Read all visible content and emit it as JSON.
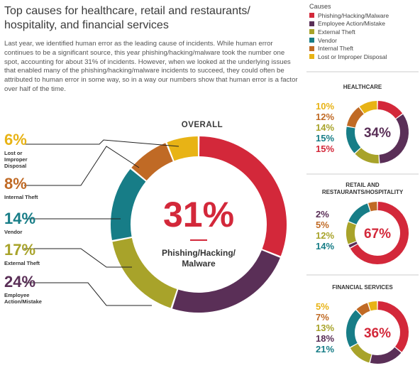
{
  "title": "Top causes for healthcare, retail and restaurants/ hospitality, and financial services",
  "intro": "Last year, we identified human error as the leading cause of incidents. While human error continues to be a significant source, this year phishing/hacking/malware took the number one spot, accounting for about 31% of incidents. However, when we looked at the underlying issues that enabled many of the phishing/hacking/malware incidents to succeed, they could often be attributed to human error in some way, so in a way our numbers show that human error is a factor over half of the time.",
  "colors": {
    "phishing": "#d3283a",
    "employee": "#5a2f57",
    "external": "#a8a32a",
    "vendor": "#177d87",
    "internal": "#c06a25",
    "disposal": "#e8b315"
  },
  "legend": {
    "title": "Causes",
    "items": [
      {
        "label": "Phishing/Hacking/Malware",
        "color": "#d3283a"
      },
      {
        "label": "Employee Action/Mistake",
        "color": "#5a2f57"
      },
      {
        "label": "External Theft",
        "color": "#a8a32a"
      },
      {
        "label": "Vendor",
        "color": "#177d87"
      },
      {
        "label": "Internal Theft",
        "color": "#c06a25"
      },
      {
        "label": "Lost or Improper Disposal",
        "color": "#e8b315"
      }
    ]
  },
  "overall": {
    "heading": "OVERALL",
    "center_pct": "31%",
    "center_label": "Phishing/Hacking/ Malware",
    "labels": [
      {
        "pct": "6%",
        "cause": "Lost or Improper Disposal",
        "color": "#e8b315"
      },
      {
        "pct": "8%",
        "cause": "Internal Theft",
        "color": "#c06a25"
      },
      {
        "pct": "14%",
        "cause": "Vendor",
        "color": "#177d87"
      },
      {
        "pct": "17%",
        "cause": "External Theft",
        "color": "#a8a32a"
      },
      {
        "pct": "24%",
        "cause": "Employee Action/Mistake",
        "color": "#5a2f57"
      }
    ]
  },
  "sectors": [
    {
      "title": "HEALTHCARE",
      "center": "34%",
      "values": [
        {
          "text": "10%",
          "color": "#e8b315"
        },
        {
          "text": "12%",
          "color": "#c06a25"
        },
        {
          "text": "14%",
          "color": "#a8a32a"
        },
        {
          "text": "15%",
          "color": "#177d87"
        },
        {
          "text": "15%",
          "color": "#d3283a"
        }
      ]
    },
    {
      "title": "RETAIL AND RESTAURANTS/HOSPITALITY",
      "center": "67%",
      "values": [
        {
          "text": "2%",
          "color": "#5a2f57"
        },
        {
          "text": "5%",
          "color": "#c06a25"
        },
        {
          "text": "12%",
          "color": "#a8a32a"
        },
        {
          "text": "14%",
          "color": "#177d87"
        }
      ]
    },
    {
      "title": "FINANCIAL SERVICES",
      "center": "36%",
      "values": [
        {
          "text": "5%",
          "color": "#e8b315"
        },
        {
          "text": "7%",
          "color": "#c06a25"
        },
        {
          "text": "13%",
          "color": "#a8a32a"
        },
        {
          "text": "18%",
          "color": "#5a2f57"
        },
        {
          "text": "21%",
          "color": "#177d87"
        }
      ]
    }
  ],
  "chart_data": [
    {
      "type": "pie",
      "title": "OVERALL",
      "categories": [
        "Phishing/Hacking/Malware",
        "Employee Action/Mistake",
        "External Theft",
        "Vendor",
        "Internal Theft",
        "Lost or Improper Disposal"
      ],
      "values": [
        31,
        24,
        17,
        14,
        8,
        6
      ]
    },
    {
      "type": "pie",
      "title": "HEALTHCARE",
      "categories": [
        "Phishing/Hacking/Malware",
        "Employee Action/Mistake",
        "External Theft",
        "Vendor",
        "Internal Theft",
        "Lost or Improper Disposal"
      ],
      "values": [
        15,
        34,
        14,
        15,
        12,
        10
      ]
    },
    {
      "type": "pie",
      "title": "RETAIL AND RESTAURANTS/HOSPITALITY",
      "categories": [
        "Phishing/Hacking/Malware",
        "Employee Action/Mistake",
        "External Theft",
        "Vendor",
        "Internal Theft"
      ],
      "values": [
        67,
        2,
        12,
        14,
        5
      ]
    },
    {
      "type": "pie",
      "title": "FINANCIAL SERVICES",
      "categories": [
        "Phishing/Hacking/Malware",
        "Employee Action/Mistake",
        "External Theft",
        "Vendor",
        "Internal Theft",
        "Lost or Improper Disposal"
      ],
      "values": [
        36,
        18,
        13,
        21,
        7,
        5
      ]
    }
  ]
}
